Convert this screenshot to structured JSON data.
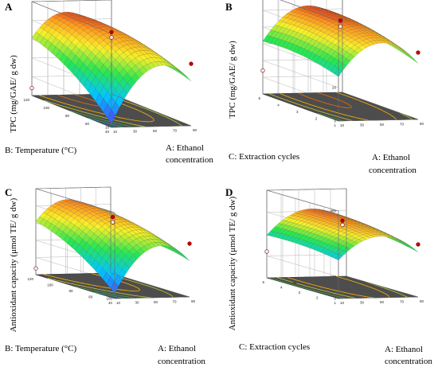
{
  "chart_data": [
    {
      "panel": "A",
      "type": "surface3d",
      "zlabel": "TPC (mg/GAE/ g dw)",
      "xlabel": "A: Ethanol concentration",
      "ylabel": "B: Temperature (°C)",
      "x_ticks": [
        "10",
        "30",
        "50",
        "70",
        "90"
      ],
      "y_ticks": [
        "40",
        "60",
        "80",
        "100",
        "120"
      ],
      "z_ticks": [
        "10",
        "20",
        "30",
        "40",
        "50",
        "60"
      ],
      "xlim": [
        10,
        90
      ],
      "ylim": [
        40,
        120
      ],
      "zlim": [
        10,
        60
      ],
      "surface": {
        "type": "quadratic",
        "b0": 51.8,
        "b1": 3.0,
        "b2": 6.5,
        "b11": -18.0,
        "b22": -4.5,
        "b12": -8.0,
        "zmin": 13,
        "zmax": 57
      },
      "points": [
        {
          "x": 90,
          "y": 40,
          "z": 43
        },
        {
          "x": 50,
          "y": 80,
          "z": 51.8
        },
        {
          "x": 50,
          "y": 80,
          "z": 49
        },
        {
          "x": 10,
          "y": 120,
          "z": 14
        }
      ],
      "contour_colors": [
        "#1565c0",
        "#26a69a",
        "#43a047",
        "#c0ca33",
        "#ffb300",
        "#ef6c00"
      ]
    },
    {
      "panel": "B",
      "type": "surface3d",
      "zlabel": "TPC (mg/GAE/ g dw)",
      "xlabel": "A: Ethanol concentration",
      "ylabel": "C: Extraction cycles",
      "x_ticks": [
        "10",
        "30",
        "50",
        "70",
        "90"
      ],
      "y_ticks": [
        "1",
        "2",
        "3",
        "4",
        "5"
      ],
      "z_ticks": [
        "0",
        "10",
        "20",
        "30",
        "40",
        "50",
        "60"
      ],
      "xlim": [
        10,
        90
      ],
      "ylim": [
        1,
        5
      ],
      "zlim": [
        0,
        60
      ],
      "surface": {
        "type": "quadratic",
        "b0": 51.5,
        "b1": 4.0,
        "b2": 3.0,
        "b11": -16.0,
        "b22": -2.5,
        "b12": 0.5,
        "zmin": 12,
        "zmax": 55
      },
      "points": [
        {
          "x": 50,
          "y": 3,
          "z": 51.5
        },
        {
          "x": 50,
          "y": 3,
          "z": 48
        },
        {
          "x": 90,
          "y": 1,
          "z": 40
        },
        {
          "x": 10,
          "y": 5,
          "z": 14
        }
      ],
      "contour_colors": [
        "#1565c0",
        "#26a69a",
        "#43a047",
        "#c0ca33",
        "#ffb300",
        "#ef6c00"
      ]
    },
    {
      "panel": "C",
      "type": "surface3d",
      "zlabel": "Antioxidant capacity (μmol TE/ g dw)",
      "xlabel": "A: Ethanol concentration",
      "ylabel": "B: Temperature (°C)",
      "x_ticks": [
        "10",
        "30",
        "50",
        "70",
        "90"
      ],
      "y_ticks": [
        "40",
        "60",
        "80",
        "100",
        "120"
      ],
      "z_ticks": [
        "100",
        "150",
        "200",
        "250",
        "300",
        "350"
      ],
      "xlim": [
        10,
        90
      ],
      "ylim": [
        40,
        120
      ],
      "zlim": [
        100,
        350
      ],
      "surface": {
        "type": "quadratic",
        "b0": 300,
        "b1": 10,
        "b2": 35,
        "b11": -85,
        "b22": -20,
        "b12": -35,
        "zmin": 110,
        "zmax": 340
      },
      "points": [
        {
          "x": 50,
          "y": 80,
          "z": 300
        },
        {
          "x": 50,
          "y": 80,
          "z": 285
        },
        {
          "x": 90,
          "y": 40,
          "z": 255
        },
        {
          "x": 10,
          "y": 120,
          "z": 118
        }
      ],
      "contour_colors": [
        "#1565c0",
        "#26a69a",
        "#43a047",
        "#c0ca33",
        "#ffb300",
        "#ef6c00"
      ]
    },
    {
      "panel": "D",
      "type": "surface3d",
      "zlabel": "Antioxidant capacity (μmol TE/ g dw)",
      "xlabel": "A: Ethanol concentration",
      "ylabel": "C: Extraction cycles",
      "x_ticks": [
        "10",
        "30",
        "50",
        "70",
        "90"
      ],
      "y_ticks": [
        "1",
        "2",
        "3",
        "4",
        "5"
      ],
      "z_ticks": [
        "0",
        "100",
        "200",
        "300",
        "400"
      ],
      "xlim": [
        10,
        90
      ],
      "ylim": [
        1,
        5
      ],
      "zlim": [
        0,
        400
      ],
      "surface": {
        "type": "quadratic",
        "b0": 305,
        "b1": 20,
        "b2": 15,
        "b11": -90,
        "b22": -10,
        "b12": 5,
        "zmin": 120,
        "zmax": 330
      },
      "points": [
        {
          "x": 50,
          "y": 3,
          "z": 305
        },
        {
          "x": 50,
          "y": 3,
          "z": 285
        },
        {
          "x": 90,
          "y": 1,
          "z": 240
        },
        {
          "x": 10,
          "y": 5,
          "z": 120
        }
      ],
      "contour_colors": [
        "#1565c0",
        "#26a69a",
        "#43a047",
        "#c0ca33",
        "#ffb300",
        "#ef6c00"
      ]
    }
  ]
}
